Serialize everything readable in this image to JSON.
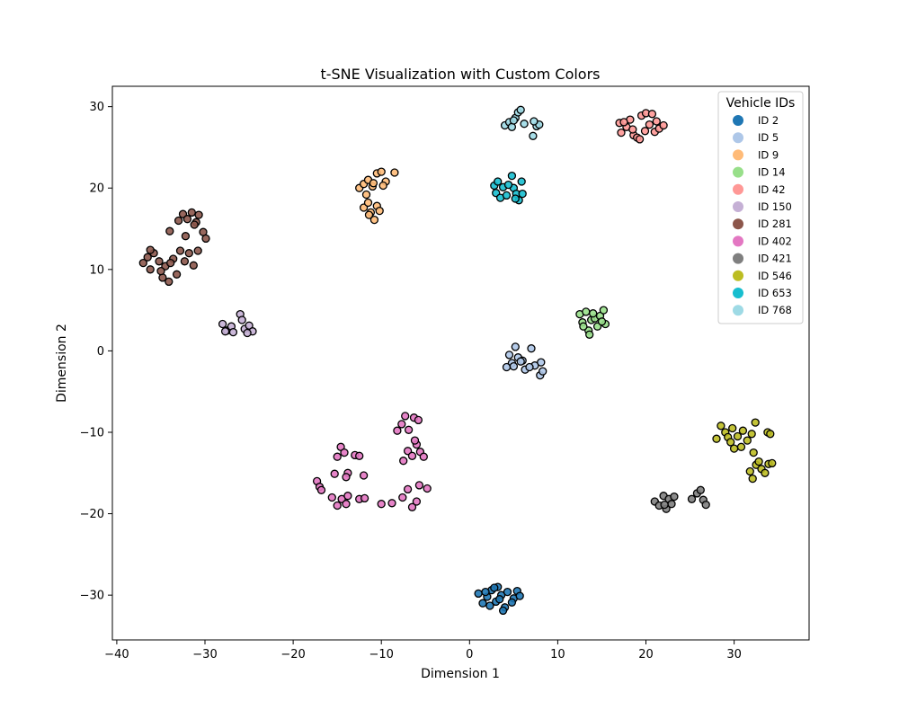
{
  "chart_data": {
    "type": "scatter",
    "title": "t-SNE Visualization with Custom Colors",
    "xlabel": "Dimension 1",
    "ylabel": "Dimension 2",
    "xlim": [
      -40.5,
      38.5
    ],
    "ylim": [
      -35.5,
      32.5
    ],
    "xticks": [
      -40,
      -30,
      -20,
      -10,
      0,
      10,
      20,
      30
    ],
    "xtick_labels": [
      "−40",
      "−30",
      "−20",
      "−10",
      "0",
      "10",
      "20",
      "30"
    ],
    "yticks": [
      -30,
      -20,
      -10,
      0,
      10,
      20,
      30
    ],
    "ytick_labels": [
      "−30",
      "−20",
      "−10",
      "0",
      "10",
      "20",
      "30"
    ],
    "grid": false,
    "legend": {
      "title": "Vehicle IDs",
      "position": "upper-right"
    },
    "point_edge_color": "#000000",
    "series": [
      {
        "name": "ID 2",
        "color": "#1f77b4",
        "points": [
          [
            1,
            -29.8
          ],
          [
            1.5,
            -31
          ],
          [
            2,
            -30.2
          ],
          [
            2.5,
            -29.4
          ],
          [
            3,
            -30.8
          ],
          [
            3.2,
            -29
          ],
          [
            3.6,
            -30
          ],
          [
            4,
            -31.5
          ],
          [
            4.3,
            -29.6
          ],
          [
            3.8,
            -31.9
          ],
          [
            5,
            -30.4
          ],
          [
            5.4,
            -29.5
          ],
          [
            5.7,
            -30.1
          ],
          [
            2.3,
            -31.3
          ],
          [
            2.8,
            -29.1
          ],
          [
            4.8,
            -30.9
          ],
          [
            3.4,
            -30.5
          ],
          [
            1.8,
            -29.6
          ]
        ]
      },
      {
        "name": "ID 5",
        "color": "#aec7e8",
        "points": [
          [
            4.5,
            -0.5
          ],
          [
            4.8,
            -1.5
          ],
          [
            5.2,
            0.5
          ],
          [
            5.5,
            -0.8
          ],
          [
            6,
            -1.2
          ],
          [
            6.3,
            -2.3
          ],
          [
            7,
            0.3
          ],
          [
            7.4,
            -1.8
          ],
          [
            8,
            -3
          ],
          [
            8.3,
            -2.5
          ],
          [
            4.2,
            -2
          ],
          [
            5.8,
            -1.3
          ],
          [
            6.8,
            -2
          ],
          [
            8.1,
            -1.4
          ],
          [
            5,
            -1.9
          ]
        ]
      },
      {
        "name": "ID 9",
        "color": "#ffbb78",
        "points": [
          [
            -12.5,
            20
          ],
          [
            -12,
            20.5
          ],
          [
            -11.5,
            21
          ],
          [
            -11,
            20.2
          ],
          [
            -10.5,
            21.8
          ],
          [
            -10,
            22
          ],
          [
            -9.5,
            20.8
          ],
          [
            -9.8,
            20.3
          ],
          [
            -8.5,
            21.9
          ],
          [
            -12,
            17.6
          ],
          [
            -11.5,
            18.2
          ],
          [
            -11.2,
            17
          ],
          [
            -10.8,
            16.1
          ],
          [
            -10.5,
            17.8
          ],
          [
            -11.4,
            16.7
          ],
          [
            -10.2,
            17.2
          ],
          [
            -11.7,
            19.2
          ],
          [
            -10.9,
            20.6
          ]
        ]
      },
      {
        "name": "ID 14",
        "color": "#98df8a",
        "points": [
          [
            12.5,
            4.5
          ],
          [
            12.8,
            3.5
          ],
          [
            13.2,
            4.8
          ],
          [
            13.5,
            2.5
          ],
          [
            13.8,
            3.8
          ],
          [
            14.2,
            4
          ],
          [
            14.5,
            3
          ],
          [
            14.8,
            4.3
          ],
          [
            15.2,
            5
          ],
          [
            15.4,
            3.3
          ],
          [
            13.6,
            2
          ],
          [
            14,
            4.6
          ],
          [
            15,
            3.6
          ],
          [
            12.9,
            3
          ]
        ]
      },
      {
        "name": "ID 42",
        "color": "#ff9896",
        "points": [
          [
            17,
            28
          ],
          [
            17.2,
            26.8
          ],
          [
            17.8,
            27.5
          ],
          [
            18.2,
            28.4
          ],
          [
            18.6,
            26.5
          ],
          [
            19,
            26.2
          ],
          [
            19.5,
            28.9
          ],
          [
            20,
            29.2
          ],
          [
            20.4,
            27.8
          ],
          [
            21,
            26.9
          ],
          [
            21.2,
            28.2
          ],
          [
            21.5,
            27.3
          ],
          [
            22,
            27.7
          ],
          [
            18.5,
            27.2
          ],
          [
            19.9,
            27
          ],
          [
            20.7,
            29.1
          ],
          [
            17.5,
            28.1
          ],
          [
            19.3,
            26
          ]
        ]
      },
      {
        "name": "ID 150",
        "color": "#c5b0d5",
        "points": [
          [
            -28,
            3.3
          ],
          [
            -27.5,
            2.5
          ],
          [
            -27,
            3
          ],
          [
            -26.8,
            2.3
          ],
          [
            -26,
            4.5
          ],
          [
            -25.8,
            3.8
          ],
          [
            -25.5,
            2.7
          ],
          [
            -25,
            3.1
          ],
          [
            -24.6,
            2.4
          ],
          [
            -27.7,
            2.4
          ],
          [
            -25.2,
            2.2
          ]
        ]
      },
      {
        "name": "ID 281",
        "color": "#8c564b",
        "points": [
          [
            -37,
            10.8
          ],
          [
            -36.5,
            11.5
          ],
          [
            -36.2,
            10
          ],
          [
            -35.8,
            12
          ],
          [
            -35.2,
            11
          ],
          [
            -34.8,
            9
          ],
          [
            -34.5,
            10.4
          ],
          [
            -34.1,
            8.5
          ],
          [
            -33.6,
            11.3
          ],
          [
            -33.2,
            9.4
          ],
          [
            -32.8,
            12.3
          ],
          [
            -32.3,
            11
          ],
          [
            -31.8,
            12
          ],
          [
            -31.3,
            10.5
          ],
          [
            -30.8,
            12.3
          ],
          [
            -33,
            16
          ],
          [
            -32.5,
            16.8
          ],
          [
            -32,
            16.2
          ],
          [
            -31.5,
            17
          ],
          [
            -31,
            15.8
          ],
          [
            -30.7,
            16.7
          ],
          [
            -30.2,
            14.6
          ],
          [
            -29.9,
            13.8
          ],
          [
            -32.2,
            14.1
          ],
          [
            -31.2,
            15.5
          ],
          [
            -34,
            14.7
          ],
          [
            -36.2,
            12.4
          ],
          [
            -35,
            9.8
          ],
          [
            -33.9,
            10.8
          ]
        ]
      },
      {
        "name": "ID 402",
        "color": "#e377c2",
        "points": [
          [
            -15,
            -13
          ],
          [
            -14.6,
            -11.8
          ],
          [
            -14.2,
            -12.5
          ],
          [
            -13.8,
            -15
          ],
          [
            -13,
            -12.8
          ],
          [
            -12.5,
            -12.9
          ],
          [
            -12,
            -15.3
          ],
          [
            -15.3,
            -15.1
          ],
          [
            -14,
            -15.5
          ],
          [
            -17.3,
            -16
          ],
          [
            -17,
            -16.7
          ],
          [
            -16.8,
            -17.1
          ],
          [
            -15.6,
            -18
          ],
          [
            -15,
            -19
          ],
          [
            -14.5,
            -18.2
          ],
          [
            -14,
            -18.8
          ],
          [
            -13.8,
            -17.8
          ],
          [
            -12.5,
            -18.2
          ],
          [
            -11.9,
            -18.1
          ],
          [
            -10,
            -18.8
          ],
          [
            -8.8,
            -18.7
          ],
          [
            -7.6,
            -18
          ],
          [
            -7,
            -17
          ],
          [
            -6.5,
            -19.2
          ],
          [
            -6,
            -18.5
          ],
          [
            -5.7,
            -16.5
          ],
          [
            -4.8,
            -16.9
          ],
          [
            -8.2,
            -9.8
          ],
          [
            -7.7,
            -9
          ],
          [
            -7.3,
            -8
          ],
          [
            -6.9,
            -9.7
          ],
          [
            -6.3,
            -8.2
          ],
          [
            -5.8,
            -8.5
          ],
          [
            -7.5,
            -13.5
          ],
          [
            -7,
            -12.3
          ],
          [
            -6.5,
            -12.9
          ],
          [
            -6,
            -11.5
          ],
          [
            -5.6,
            -12.4
          ],
          [
            -5.2,
            -13
          ],
          [
            -6.2,
            -11
          ]
        ]
      },
      {
        "name": "ID 421",
        "color": "#7f7f7f",
        "points": [
          [
            21,
            -18.5
          ],
          [
            21.5,
            -19
          ],
          [
            22,
            -17.8
          ],
          [
            22.3,
            -19.4
          ],
          [
            22.6,
            -18.2
          ],
          [
            22.9,
            -18.8
          ],
          [
            23.2,
            -17.9
          ],
          [
            25.2,
            -18.2
          ],
          [
            25.8,
            -17.5
          ],
          [
            26.2,
            -17.1
          ],
          [
            26.5,
            -18.3
          ],
          [
            26.8,
            -18.9
          ],
          [
            22.1,
            -18.9
          ]
        ]
      },
      {
        "name": "ID 546",
        "color": "#bcbd22",
        "points": [
          [
            28,
            -10.8
          ],
          [
            28.5,
            -9.2
          ],
          [
            29,
            -10
          ],
          [
            29.3,
            -10.6
          ],
          [
            29.6,
            -11.2
          ],
          [
            30,
            -12
          ],
          [
            30.4,
            -10.5
          ],
          [
            30.8,
            -11.8
          ],
          [
            31,
            -9.8
          ],
          [
            31.5,
            -11
          ],
          [
            32,
            -10.2
          ],
          [
            32.4,
            -8.8
          ],
          [
            31.8,
            -14.8
          ],
          [
            32.1,
            -15.7
          ],
          [
            32.5,
            -14
          ],
          [
            32.8,
            -13.6
          ],
          [
            33.1,
            -14.5
          ],
          [
            33.5,
            -15
          ],
          [
            33.9,
            -13.9
          ],
          [
            34.3,
            -13.8
          ],
          [
            33.8,
            -10
          ],
          [
            34.1,
            -10.2
          ],
          [
            29.8,
            -9.5
          ],
          [
            32.2,
            -12.5
          ]
        ]
      },
      {
        "name": "ID 653",
        "color": "#17becf",
        "points": [
          [
            2.8,
            20.3
          ],
          [
            3,
            19.4
          ],
          [
            3.2,
            20.8
          ],
          [
            3.5,
            18.8
          ],
          [
            3.8,
            20.1
          ],
          [
            4.2,
            19.1
          ],
          [
            4.8,
            21.5
          ],
          [
            5,
            20
          ],
          [
            5.3,
            19.3
          ],
          [
            5.6,
            18.5
          ],
          [
            5.9,
            20.8
          ],
          [
            6,
            19.3
          ],
          [
            4.4,
            20.4
          ],
          [
            5.2,
            18.7
          ]
        ]
      },
      {
        "name": "ID 768",
        "color": "#9edae5",
        "points": [
          [
            4,
            27.7
          ],
          [
            4.5,
            28.1
          ],
          [
            4.8,
            27.5
          ],
          [
            5.2,
            28.6
          ],
          [
            5.5,
            29.3
          ],
          [
            5.8,
            29.6
          ],
          [
            6.2,
            27.9
          ],
          [
            7.2,
            26.4
          ],
          [
            7.6,
            27.6
          ],
          [
            7.9,
            27.8
          ],
          [
            7.3,
            28.2
          ],
          [
            5,
            28.3
          ]
        ]
      }
    ]
  }
}
